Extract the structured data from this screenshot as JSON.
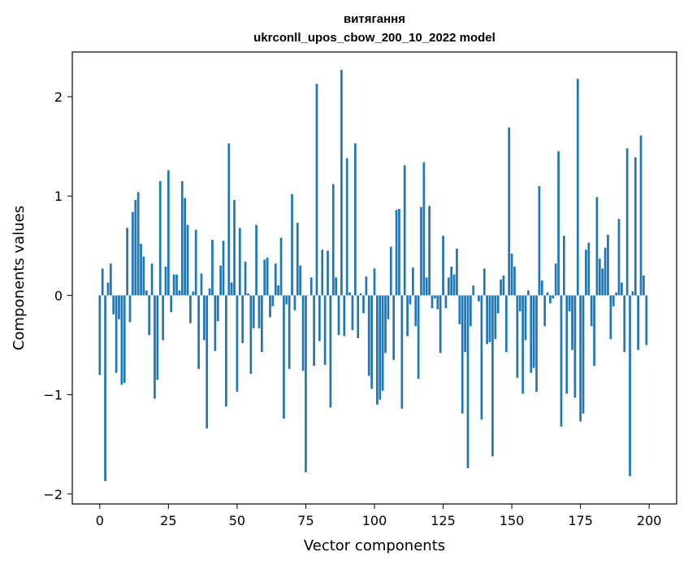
{
  "chart_data": {
    "type": "bar",
    "title_line1": "витягання",
    "title_line2": "ukrconll_upos_cbow_200_10_2022 model",
    "xlabel": "Vector components",
    "ylabel": "Components values",
    "xlim": [
      -10,
      210
    ],
    "ylim": [
      -2.1,
      2.45
    ],
    "xticks": [
      0,
      25,
      50,
      75,
      100,
      125,
      150,
      175,
      200
    ],
    "yticks": [
      -2,
      -1,
      0,
      1,
      2
    ],
    "ytick_labels": [
      "−2",
      "−1",
      "0",
      "1",
      "2"
    ],
    "bar_color": "#1f77b4",
    "values": [
      -0.8,
      0.27,
      -1.87,
      0.13,
      0.32,
      -0.19,
      -0.78,
      -0.24,
      -0.9,
      -0.88,
      0.68,
      -0.27,
      0.84,
      0.96,
      1.04,
      0.52,
      0.39,
      0.05,
      -0.4,
      0.32,
      -1.04,
      -0.85,
      1.15,
      -0.45,
      0.29,
      1.26,
      -0.17,
      0.21,
      0.21,
      0.05,
      1.15,
      0.98,
      0.71,
      -0.28,
      0.04,
      0.66,
      -0.74,
      0.22,
      -0.45,
      -1.34,
      0.07,
      0.56,
      -0.56,
      -0.26,
      0.3,
      0.55,
      -1.12,
      1.53,
      0.13,
      0.96,
      -0.97,
      0.68,
      -0.48,
      0.34,
      0.02,
      -0.79,
      -0.33,
      0.71,
      -0.33,
      -0.57,
      0.36,
      0.38,
      -0.22,
      -0.11,
      0.32,
      0.1,
      0.58,
      -1.24,
      -0.09,
      -0.74,
      1.02,
      -0.15,
      0.73,
      0.3,
      -0.76,
      -1.78,
      0.0,
      0.18,
      -0.71,
      2.13,
      -0.46,
      0.46,
      -0.7,
      0.45,
      -1.13,
      1.12,
      0.18,
      -0.4,
      2.27,
      -0.41,
      1.38,
      0.03,
      -0.35,
      1.53,
      -0.43,
      0.02,
      -0.18,
      0.19,
      -0.81,
      -0.94,
      0.27,
      -1.1,
      -1.05,
      -0.96,
      -0.58,
      -0.24,
      0.49,
      -0.65,
      0.86,
      0.87,
      -1.14,
      1.31,
      -0.41,
      -0.09,
      0.28,
      -0.31,
      -0.84,
      0.89,
      1.34,
      0.18,
      0.9,
      -0.13,
      -0.03,
      -0.14,
      -0.58,
      0.6,
      -0.13,
      0.18,
      0.29,
      0.21,
      0.47,
      -0.29,
      -1.19,
      -0.57,
      -1.74,
      -0.31,
      0.1,
      0.0,
      -0.06,
      -1.25,
      0.27,
      -0.49,
      -0.47,
      -1.62,
      -0.44,
      -0.18,
      0.16,
      0.2,
      -0.57,
      1.69,
      0.42,
      0.29,
      -0.83,
      -0.16,
      -0.99,
      -0.45,
      0.05,
      -0.78,
      -0.73,
      -0.97,
      1.1,
      0.15,
      -0.31,
      0.03,
      -0.08,
      -0.03,
      0.32,
      1.45,
      -1.32,
      0.6,
      -0.99,
      -0.16,
      -0.55,
      -1.03,
      2.18,
      -1.27,
      -1.19,
      0.46,
      0.53,
      -0.31,
      -0.71,
      0.99,
      0.37,
      0.27,
      0.48,
      0.61,
      -0.44,
      -0.11,
      0.03,
      0.77,
      0.13,
      -0.57,
      1.48,
      -1.82,
      0.04,
      1.39,
      -0.55,
      1.61,
      0.2,
      -0.5
    ]
  }
}
